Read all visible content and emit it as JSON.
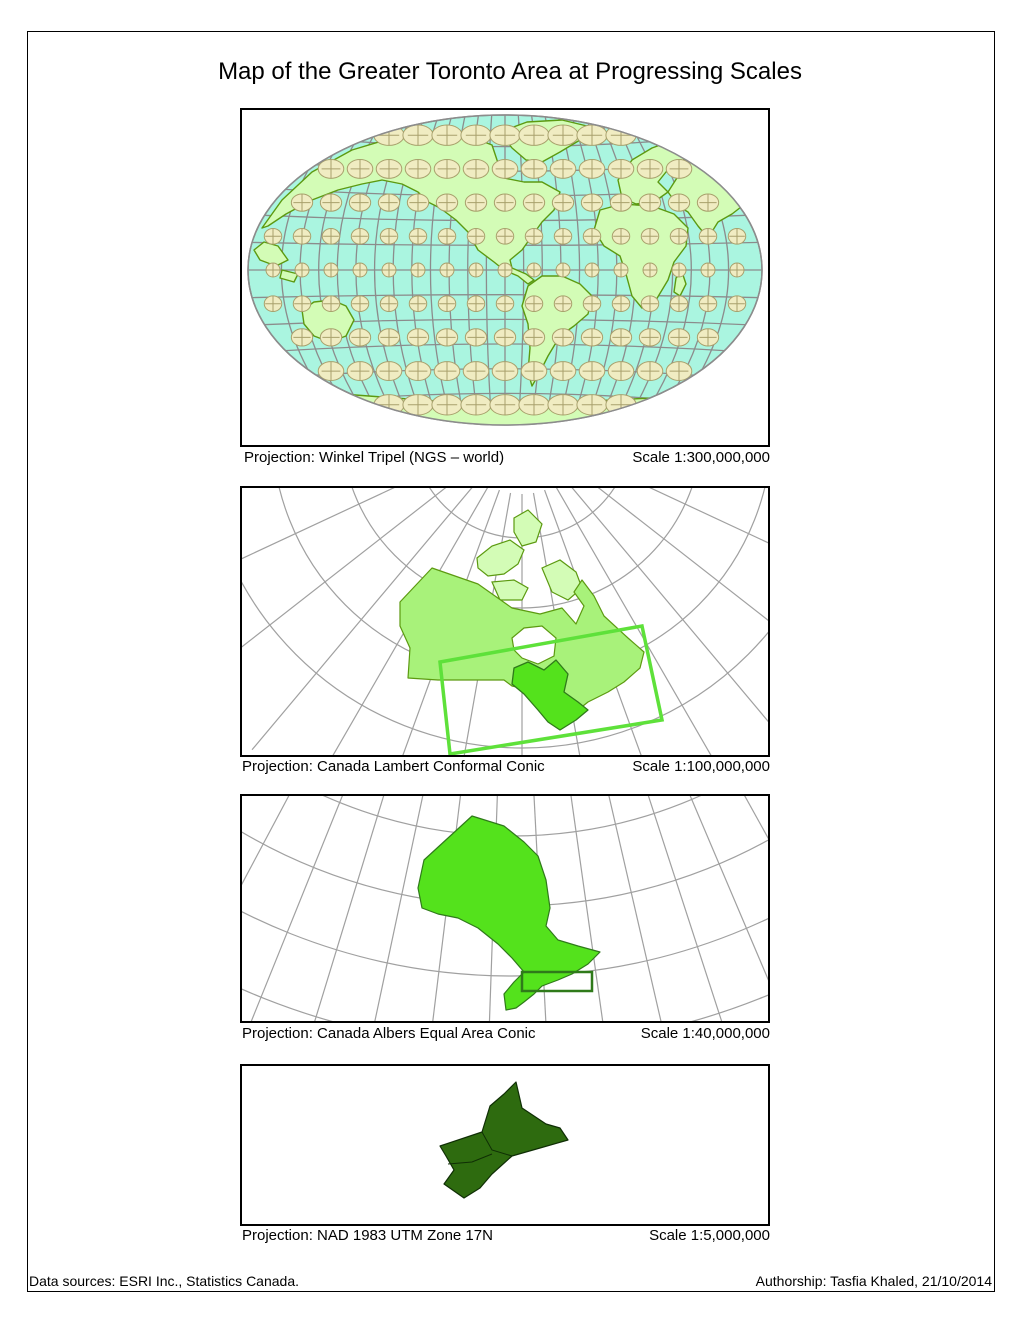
{
  "title": "Map of the Greater Toronto Area at Progressing Scales",
  "maps": [
    {
      "projection": "Projection: Winkel Tripel (NGS – world)",
      "scale": "Scale 1:300,000,000"
    },
    {
      "projection": "Projection: Canada Lambert Conformal Conic",
      "scale": "Scale 1:100,000,000"
    },
    {
      "projection": "Projection: Canada Albers Equal Area Conic",
      "scale": "Scale 1:40,000,000"
    },
    {
      "projection": "Projection: NAD 1983 UTM Zone 17N",
      "scale": "Scale 1:5,000,000"
    }
  ],
  "footer": {
    "sources": "Data sources: ESRI Inc., Statistics Canada.",
    "authorship": "Authorship: Tasfia Khaled, 21/10/2014"
  },
  "colors": {
    "ocean": "#aaf5e0",
    "land": "#d3fcb6",
    "land_outline": "#5c9a10",
    "graticule": "#8c8c8c",
    "canada_light": "#a8f27a",
    "ontario": "#54e21c",
    "extent_box_light": "#5ee13a",
    "extent_box_dark": "#2f7a1a",
    "gta": "#2e6b0f"
  }
}
